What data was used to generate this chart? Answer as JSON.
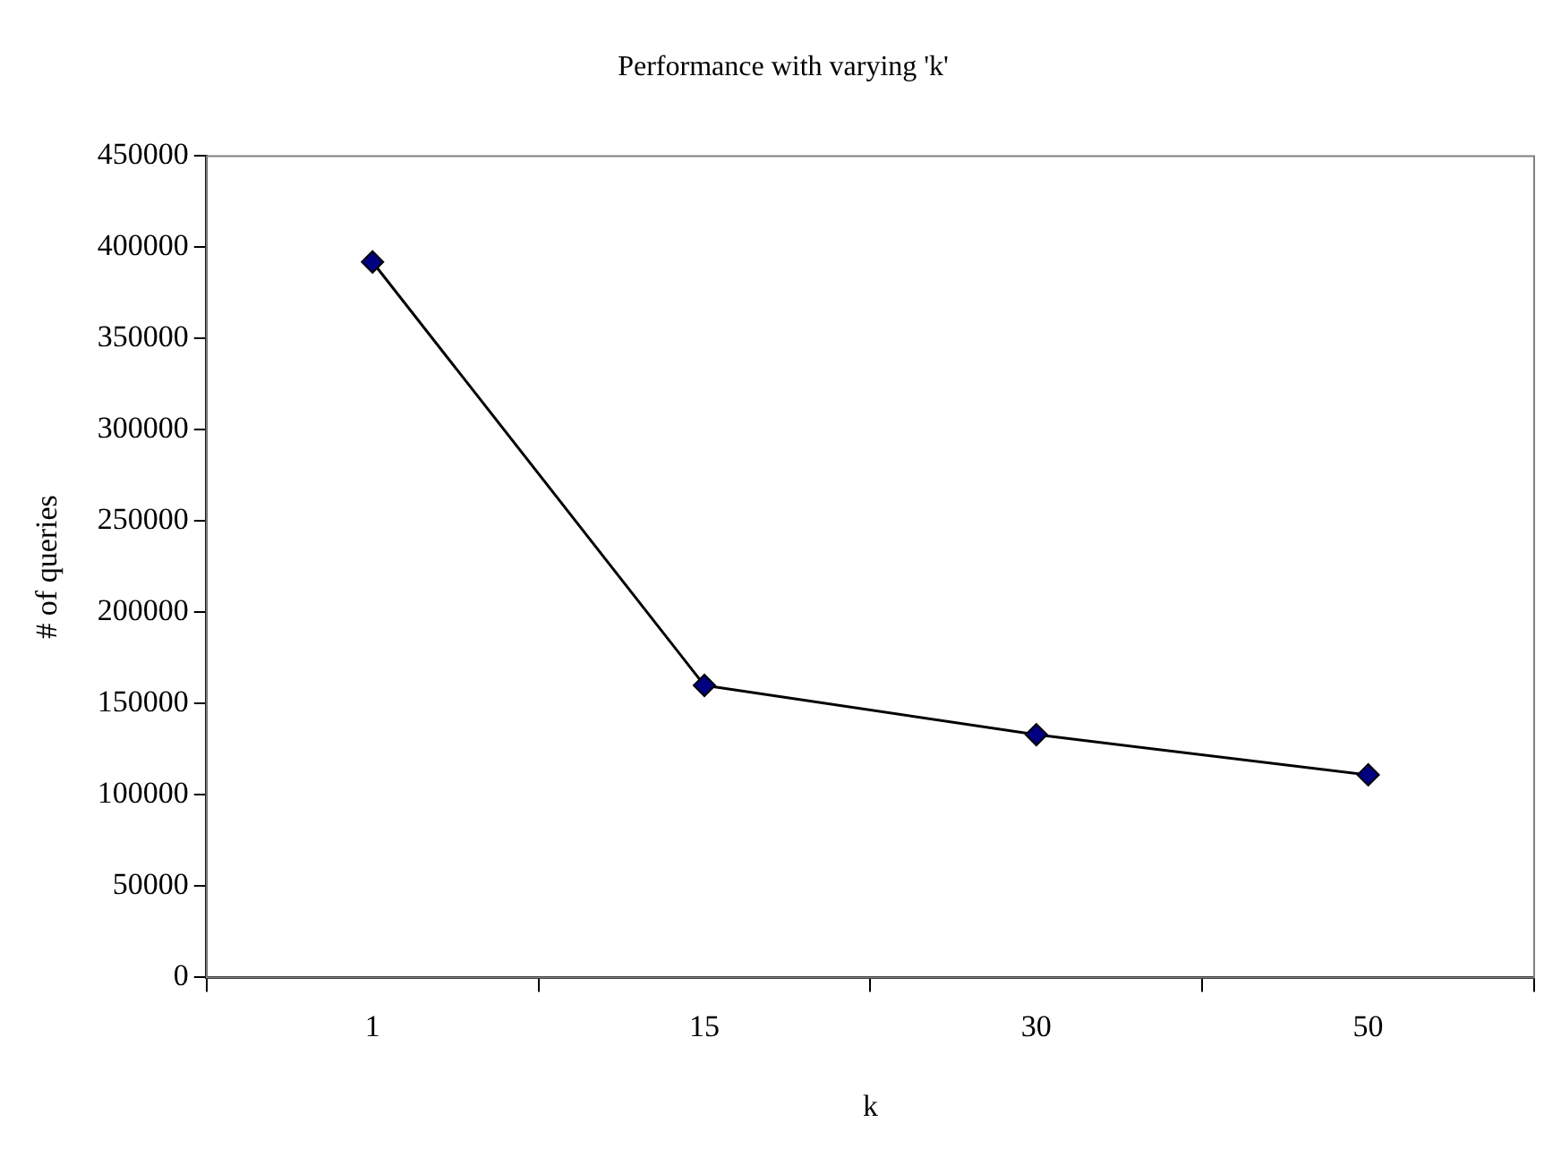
{
  "chart_data": {
    "type": "line",
    "title": "Performance with varying 'k'",
    "xlabel": "k",
    "ylabel": "# of queries",
    "categories": [
      "1",
      "15",
      "30",
      "50"
    ],
    "series": [
      {
        "color": "#000080",
        "values": [
          392000,
          160000,
          133000,
          111000
        ]
      }
    ],
    "ylim": [
      0,
      450000
    ],
    "yticks": [
      0,
      50000,
      100000,
      150000,
      200000,
      250000,
      300000,
      350000,
      400000,
      450000
    ],
    "grid": false,
    "legend": false,
    "marker": "diamond",
    "line_style": "solid"
  }
}
